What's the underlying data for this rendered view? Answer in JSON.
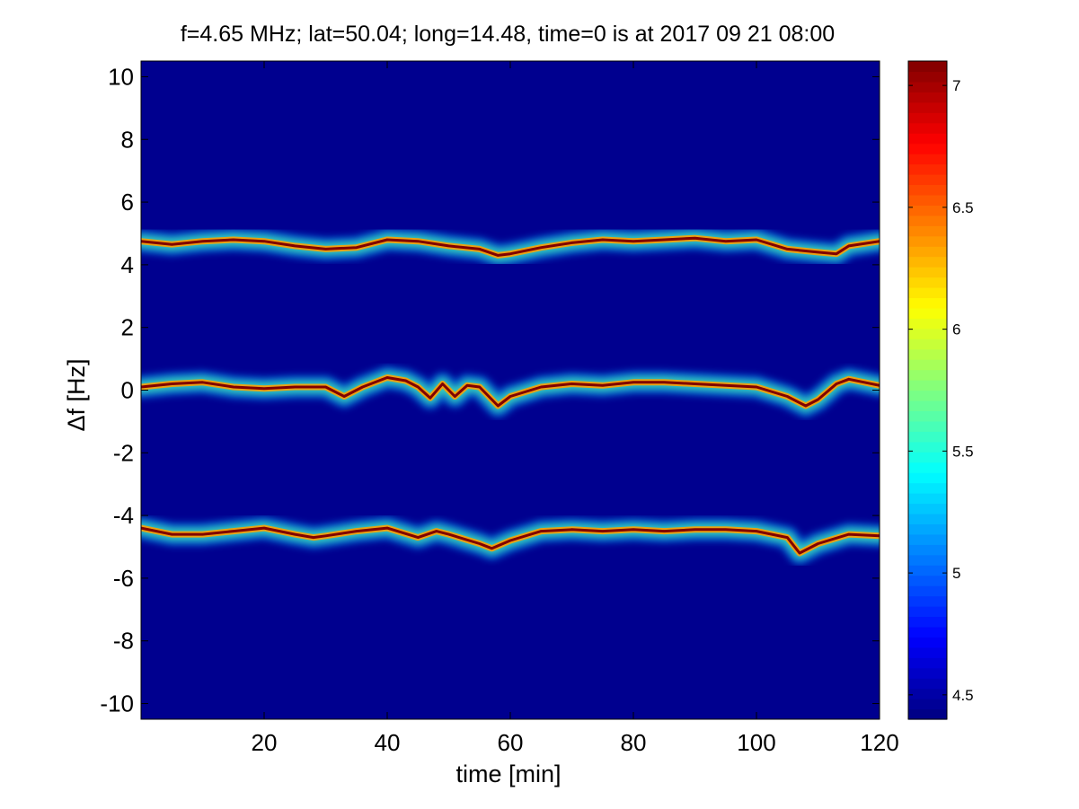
{
  "chart_data": {
    "type": "heatmap",
    "title": "f=4.65 MHz;  lat=50.04; long=14.48, time=0 is at 2017 09 21 08:00",
    "xlabel": "time [min]",
    "ylabel": "Δf [Hz]",
    "xlim": [
      0,
      120
    ],
    "ylim": [
      -10.5,
      10.5
    ],
    "xticks": [
      20,
      40,
      60,
      80,
      100,
      120
    ],
    "yticks": [
      -10,
      -8,
      -6,
      -4,
      -2,
      0,
      2,
      4,
      6,
      8,
      10
    ],
    "colormap": "jet",
    "background_color": "#00008f",
    "colorbar": {
      "range": [
        4.4,
        7.1
      ],
      "ticks": [
        4.5,
        5,
        5.5,
        6,
        6.5,
        7
      ]
    },
    "grid": false,
    "series": [
      {
        "band": "upper",
        "x": [
          0,
          5,
          10,
          15,
          20,
          25,
          30,
          35,
          40,
          45,
          50,
          55,
          58,
          60,
          65,
          70,
          75,
          80,
          85,
          90,
          95,
          100,
          105,
          110,
          113,
          115,
          120
        ],
        "y": [
          4.75,
          4.65,
          4.75,
          4.8,
          4.75,
          4.6,
          4.5,
          4.55,
          4.8,
          4.75,
          4.6,
          4.5,
          4.3,
          4.35,
          4.55,
          4.7,
          4.8,
          4.75,
          4.8,
          4.85,
          4.75,
          4.8,
          4.5,
          4.4,
          4.35,
          4.6,
          4.75
        ],
        "peak": 7.1
      },
      {
        "band": "center",
        "x": [
          0,
          5,
          10,
          15,
          20,
          25,
          30,
          33,
          36,
          40,
          43,
          45,
          47,
          49,
          51,
          53,
          55,
          58,
          60,
          65,
          70,
          75,
          80,
          85,
          90,
          95,
          100,
          105,
          108,
          110,
          113,
          115,
          120
        ],
        "y": [
          0.1,
          0.2,
          0.25,
          0.1,
          0.05,
          0.1,
          0.1,
          -0.2,
          0.1,
          0.4,
          0.3,
          0.1,
          -0.25,
          0.2,
          -0.2,
          0.15,
          0.1,
          -0.5,
          -0.2,
          0.1,
          0.2,
          0.15,
          0.25,
          0.25,
          0.2,
          0.15,
          0.1,
          -0.2,
          -0.5,
          -0.3,
          0.2,
          0.35,
          0.15
        ],
        "peak": 7.1
      },
      {
        "band": "lower",
        "x": [
          0,
          5,
          10,
          15,
          20,
          25,
          28,
          30,
          35,
          40,
          45,
          48,
          50,
          55,
          57,
          60,
          65,
          70,
          75,
          80,
          85,
          90,
          95,
          100,
          105,
          107,
          110,
          115,
          120
        ],
        "y": [
          -4.4,
          -4.6,
          -4.6,
          -4.5,
          -4.4,
          -4.6,
          -4.7,
          -4.65,
          -4.5,
          -4.4,
          -4.7,
          -4.5,
          -4.6,
          -4.9,
          -5.05,
          -4.8,
          -4.5,
          -4.45,
          -4.5,
          -4.45,
          -4.5,
          -4.45,
          -4.45,
          -4.5,
          -4.7,
          -5.2,
          -4.9,
          -4.6,
          -4.65
        ],
        "peak": 7.1
      }
    ]
  }
}
